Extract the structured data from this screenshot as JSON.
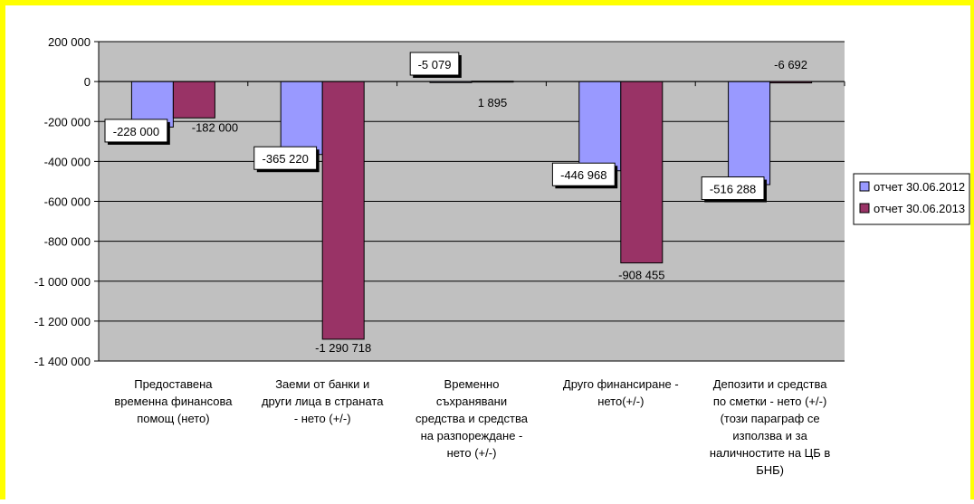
{
  "chart_data": {
    "type": "bar",
    "categories": [
      [
        "Предоставена",
        "временна финансова",
        "помощ (нето)"
      ],
      [
        "Заеми от банки и",
        "други лица в страната",
        "- нето (+/-)"
      ],
      [
        "Временно",
        "съхранявани",
        "средства и средства",
        "на разпореждане -",
        "нето (+/-)"
      ],
      [
        "Друго финансиране -",
        "нето(+/-)"
      ],
      [
        "Депозити и средства",
        "по сметки - нето (+/-)",
        "(този параграф се",
        "използва и за",
        "наличностите на ЦБ в",
        "БНБ)"
      ]
    ],
    "series": [
      {
        "name": "отчет 30.06.2012",
        "color": "#9999ff",
        "values": [
          -228000,
          -365220,
          -5079,
          -446968,
          -516288
        ],
        "labels": [
          "-228 000",
          "-365 220",
          "-5 079",
          "-446 968",
          "-516 288"
        ]
      },
      {
        "name": "отчет 30.06.2013",
        "color": "#993366",
        "values": [
          -182000,
          -1290718,
          1895,
          -908455,
          -6692
        ],
        "labels": [
          "-182 000",
          "-1 290 718",
          "1 895",
          "-908 455",
          "-6 692"
        ]
      }
    ],
    "yticks": [
      200000,
      0,
      -200000,
      -400000,
      -600000,
      -800000,
      -1000000,
      -1200000,
      -1400000
    ],
    "ytick_labels": [
      "200 000",
      "0",
      "-200 000",
      "-400 000",
      "-600 000",
      "-800 000",
      "-1 000 000",
      "-1 200 000",
      "-1 400 000"
    ],
    "ylim": [
      -1400000,
      200000
    ],
    "grid": true,
    "plot_background": "#c0c0c0",
    "legend_position": "right"
  }
}
